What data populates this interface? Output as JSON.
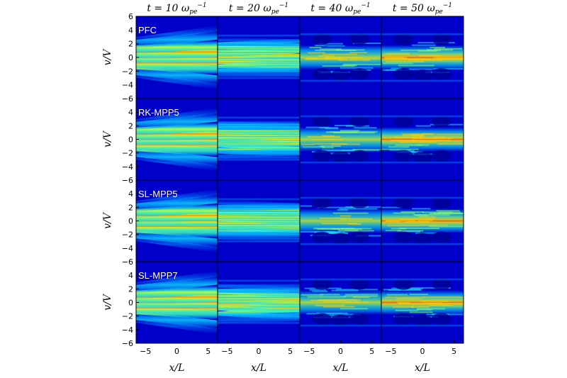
{
  "chart_data": {
    "type": "heatmap",
    "description_colormap": "jet",
    "background_color": "#0000c8",
    "col_titles": [
      "t = 10 ω_pe^-1",
      "t = 20 ω_pe^-1",
      "t = 40 ω_pe^-1",
      "t = 50 ω_pe^-1"
    ],
    "col_title_parts": [
      {
        "pre": "t = 10 ω",
        "sub": "pe",
        "sup": "−1"
      },
      {
        "pre": "t = 20 ω",
        "sub": "pe",
        "sup": "−1"
      },
      {
        "pre": "t = 40 ω",
        "sub": "pe",
        "sup": "−1"
      },
      {
        "pre": "t = 50 ω",
        "sub": "pe",
        "sup": "−1"
      }
    ],
    "row_labels": [
      "PFC",
      "RK-MPP5",
      "SL-MPP5",
      "SL-MPP7"
    ],
    "xlabel": "x/L",
    "ylabel": "v/V",
    "x_ticks": [
      -5,
      0,
      5
    ],
    "x_tick_labels": [
      "−5",
      "0",
      "5"
    ],
    "xlim": [
      -6.5,
      6.5
    ],
    "y_ticks_top": [
      4,
      2,
      0,
      -2,
      -4,
      -6
    ],
    "y_tick_labels_top": [
      "4",
      "2",
      "0",
      "−2",
      "−4",
      "−6"
    ],
    "y_ticks_first": [
      6,
      4,
      2,
      0,
      -2,
      -4,
      -6
    ],
    "y_tick_labels_first": [
      "6",
      "4",
      "2",
      "0",
      "−2",
      "−4",
      "−6"
    ],
    "ylim": [
      -6,
      6
    ],
    "time_values": [
      10,
      20,
      40,
      50
    ],
    "panels": [
      {
        "method": "PFC",
        "t": 10
      },
      {
        "method": "PFC",
        "t": 20
      },
      {
        "method": "PFC",
        "t": 40
      },
      {
        "method": "PFC",
        "t": 50
      },
      {
        "method": "RK-MPP5",
        "t": 10
      },
      {
        "method": "RK-MPP5",
        "t": 20
      },
      {
        "method": "RK-MPP5",
        "t": 40
      },
      {
        "method": "RK-MPP5",
        "t": 50
      },
      {
        "method": "SL-MPP5",
        "t": 10
      },
      {
        "method": "SL-MPP5",
        "t": 20
      },
      {
        "method": "SL-MPP5",
        "t": 40
      },
      {
        "method": "SL-MPP5",
        "t": 50
      },
      {
        "method": "SL-MPP7",
        "t": 10
      },
      {
        "method": "SL-MPP7",
        "t": 20
      },
      {
        "method": "SL-MPP7",
        "t": 40
      },
      {
        "method": "SL-MPP7",
        "t": 50
      }
    ]
  }
}
